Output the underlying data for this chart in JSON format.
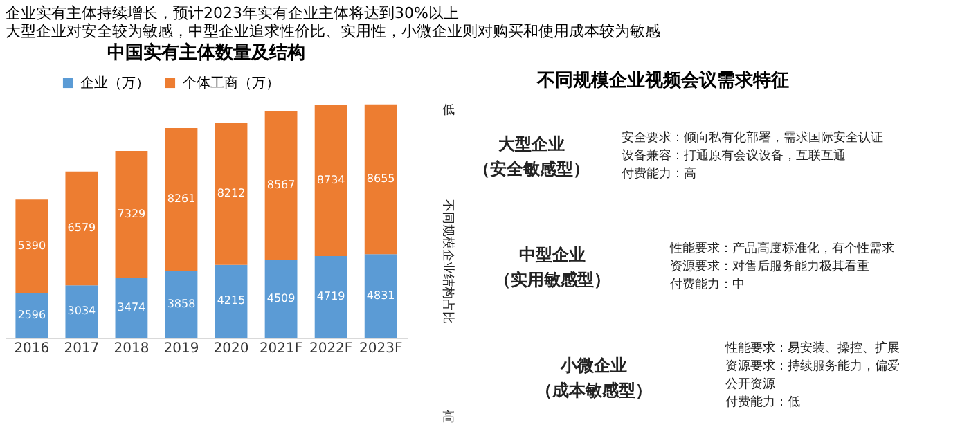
{
  "chart_data": [
    {
      "type": "bar",
      "title": "中国实有主体数量及结构",
      "stacked": true,
      "data_labels": true,
      "legend": "top",
      "annotations": [
        "企业实有主体持续增长，预计2023年实有企业主体将达到30%以上",
        "大型企业对安全较为敏感，中型企业追求性价比、实用性，小微企业则对购买和使用成本较为敏感"
      ],
      "categories": [
        "2016",
        "2017",
        "2018",
        "2019",
        "2020",
        "2021F",
        "2022F",
        "2023F"
      ],
      "series": [
        {
          "name": "企业（万）",
          "color": "#5b9bd5",
          "values": [
            2596,
            3034,
            3474,
            3858,
            4215,
            4509,
            4719,
            4831
          ]
        },
        {
          "name": "个体工商（万）",
          "color": "#ed7d31",
          "values": [
            5390,
            6579,
            7329,
            8261,
            8212,
            8567,
            8734,
            8655
          ]
        }
      ]
    },
    {
      "type": "other",
      "title": "不同规模企业视频会议需求特征",
      "annotations": [
        "低",
        "不同规模企业结构占比",
        "高",
        "大型企业",
        "（安全敏感型）",
        "安全要求：倾向私有化部署，需求国际安全认证",
        "设备兼容：打通原有会议设备，互联互通",
        "付费能力：高",
        "中型企业",
        "（实用敏感型）",
        "性能要求：产品高度标准化，有个性需求",
        "资源要求：对售后服务能力极其看重",
        "付费能力：中",
        "小微企业",
        "（成本敏感型）",
        "性能要求：易安装、操控、扩展",
        "资源要求：持续服务能力，偏爱",
        "公开资源",
        "付费能力：低"
      ]
    }
  ]
}
